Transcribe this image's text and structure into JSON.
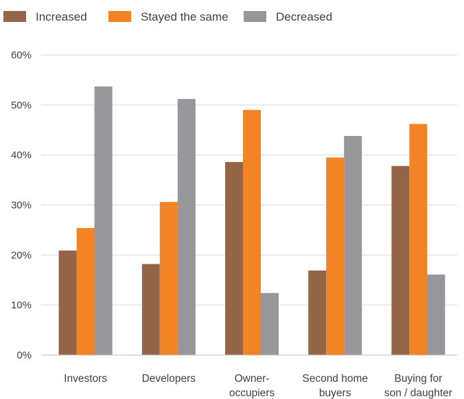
{
  "chart_data": {
    "type": "bar",
    "categories": [
      [
        "Investors"
      ],
      [
        "Developers"
      ],
      [
        "Owner-",
        "occupiers"
      ],
      [
        "Second home",
        "buyers"
      ],
      [
        "Buying for",
        "son / daughter"
      ]
    ],
    "series": [
      {
        "name": "Increased",
        "color": "#946547",
        "values": [
          20.9,
          18.2,
          38.6,
          16.9,
          37.8
        ]
      },
      {
        "name": "Stayed the same",
        "color": "#F28426",
        "values": [
          25.4,
          30.6,
          49.0,
          39.5,
          46.2
        ]
      },
      {
        "name": "Decreased",
        "color": "#96969B",
        "values": [
          53.7,
          51.2,
          12.4,
          43.8,
          16.1
        ]
      }
    ],
    "ylim": [
      0,
      60
    ],
    "yticks": [
      0,
      10,
      20,
      30,
      40,
      50,
      60
    ],
    "ytick_labels": [
      "0%",
      "10%",
      "20%",
      "30%",
      "40%",
      "50%",
      "60%"
    ],
    "grid": true,
    "legend_position": "top-left",
    "title": "",
    "xlabel": "",
    "ylabel": ""
  }
}
